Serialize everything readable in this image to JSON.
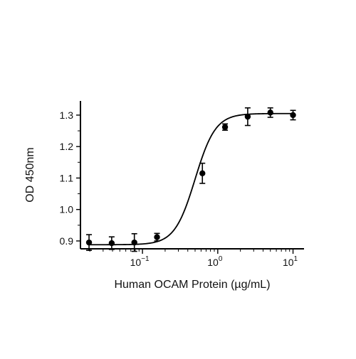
{
  "chart_data": {
    "type": "scatter",
    "title": "",
    "xlabel": "Human OCAM Protein (µg/mL)",
    "ylabel": "OD 450nm",
    "xscale": "log",
    "xlim": [
      0.015,
      14
    ],
    "ylim": [
      0.875,
      1.345
    ],
    "grid": false,
    "legend": "none",
    "x_ticks": [
      {
        "value": 0.1,
        "base": "10",
        "exp": "−1"
      },
      {
        "value": 1,
        "base": "10",
        "exp": "0"
      },
      {
        "value": 10,
        "base": "10",
        "exp": "1"
      }
    ],
    "y_ticks": [
      0.9,
      1.0,
      1.1,
      1.2,
      1.3
    ],
    "y_tick_labels": [
      "0.9",
      "1.0",
      "1.1",
      "1.2",
      "1.3"
    ],
    "series": [
      {
        "x": [
          0.0195,
          0.039,
          0.078,
          0.156,
          0.625,
          1.25,
          2.5,
          5,
          10
        ],
        "y": [
          0.895,
          0.893,
          0.895,
          0.912,
          1.115,
          1.262,
          1.295,
          1.308,
          1.3
        ],
        "error": [
          0.025,
          0.02,
          0.028,
          0.012,
          0.032,
          0.01,
          0.028,
          0.015,
          0.015
        ]
      }
    ],
    "fit": {
      "model": "4PL",
      "bottom": 0.888,
      "top": 1.305,
      "ec50": 0.5,
      "hill": 3.2
    }
  }
}
